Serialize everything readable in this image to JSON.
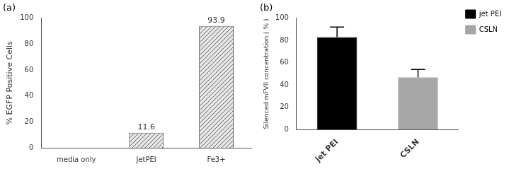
{
  "chart_data": [
    {
      "type": "bar",
      "title": "(a)",
      "categories": [
        "media only",
        "JetPEI",
        "Fe3+"
      ],
      "values": [
        0,
        11.6,
        93.9
      ],
      "value_labels": [
        null,
        "11.6",
        "93.9"
      ],
      "color": "#666666",
      "y_label": "% EGFP Positive Cells",
      "ylim": [
        0,
        100
      ],
      "yticks": [
        0,
        20,
        40,
        60,
        80,
        100
      ],
      "grid": false,
      "data_labels": true
    },
    {
      "type": "bar",
      "title": "(b)",
      "categories": [
        "jet PEI",
        "CSLN"
      ],
      "values": [
        83,
        47
      ],
      "errors": [
        9,
        7
      ],
      "colors": [
        "#000000",
        "#a6a6a6"
      ],
      "y_label": "Silenced mFVII concentration ( % )",
      "ylim": [
        0,
        100
      ],
      "yticks": [
        0,
        20,
        40,
        60,
        80,
        100
      ],
      "grid": false,
      "legend": "upper right"
    }
  ]
}
